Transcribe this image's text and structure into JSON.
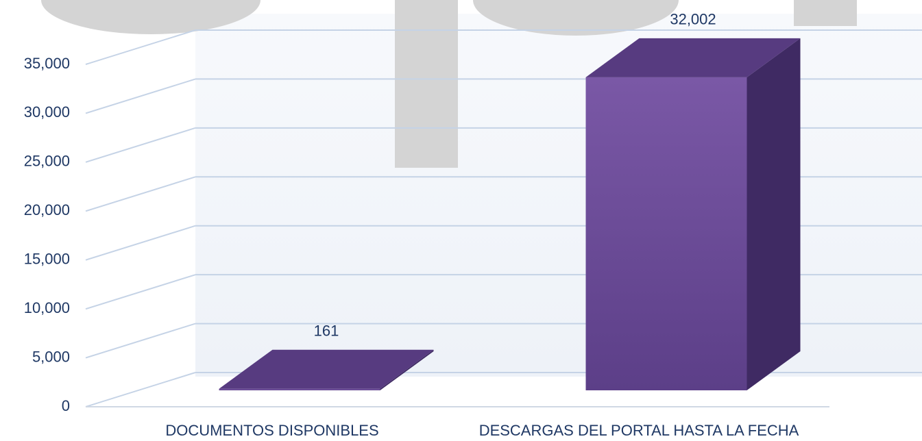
{
  "chart_data": {
    "type": "bar3d",
    "categories": [
      "DOCUMENTOS DISPONIBLES",
      "DESCARGAS DEL PORTAL HASTA LA FECHA"
    ],
    "values": [
      161,
      32002
    ],
    "value_labels": [
      "161",
      "32,002"
    ],
    "color": "#6b4c96",
    "ylim": [
      0,
      35000
    ],
    "yticks": [
      0,
      {
        "value": 5000,
        "label": "5,000"
      },
      {
        "value": 10000,
        "label": "10,000"
      },
      {
        "value": 15000,
        "label": "15,000"
      },
      {
        "value": 20000,
        "label": "20,000"
      },
      {
        "value": 25000,
        "label": "25,000"
      },
      {
        "value": 30000,
        "label": "30,000"
      },
      {
        "value": 35000,
        "label": "35,000"
      }
    ],
    "grid": true
  }
}
